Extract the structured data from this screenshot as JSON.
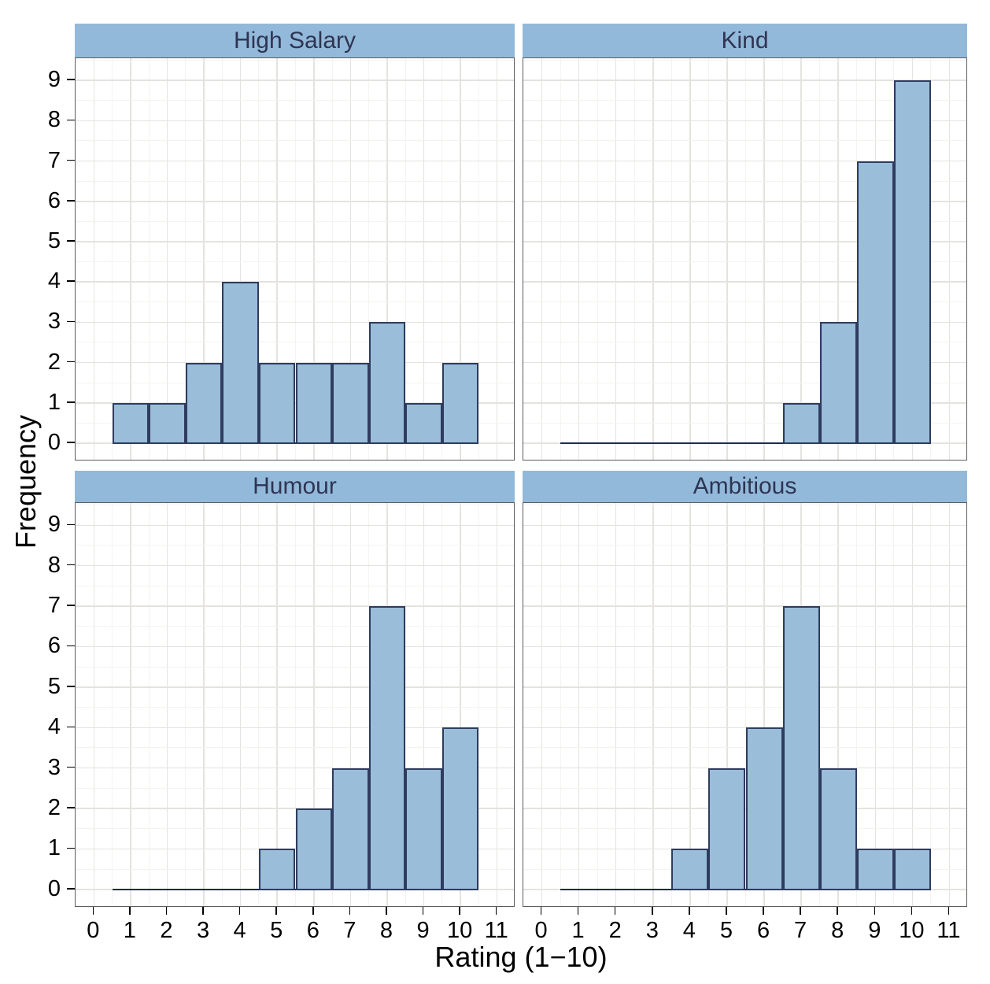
{
  "chart_data": {
    "type": "bar",
    "subtype": "faceted-histogram",
    "title": "",
    "xlabel": "Rating (1−10)",
    "ylabel": "Frequency",
    "bin_centers": [
      1,
      2,
      3,
      4,
      5,
      6,
      7,
      8,
      9,
      10
    ],
    "bin_width": 1,
    "facets": [
      {
        "label": "High Salary",
        "row": 0,
        "col": 0,
        "values": [
          1,
          1,
          2,
          4,
          2,
          2,
          2,
          3,
          1,
          2
        ]
      },
      {
        "label": "Kind",
        "row": 0,
        "col": 1,
        "values": [
          0,
          0,
          0,
          0,
          0,
          0,
          1,
          3,
          7,
          9
        ]
      },
      {
        "label": "Humour",
        "row": 1,
        "col": 0,
        "values": [
          0,
          0,
          0,
          0,
          1,
          2,
          3,
          7,
          3,
          4
        ]
      },
      {
        "label": "Ambitious",
        "row": 1,
        "col": 1,
        "values": [
          0,
          0,
          0,
          1,
          3,
          4,
          7,
          3,
          1,
          1
        ]
      }
    ],
    "x_ticks": [
      0,
      1,
      2,
      3,
      4,
      5,
      6,
      7,
      8,
      9,
      10,
      11
    ],
    "y_ticks": [
      0,
      1,
      2,
      3,
      4,
      5,
      6,
      7,
      8,
      9
    ],
    "xlim": [
      -0.5,
      11.5
    ],
    "ylim": [
      -0.45,
      9.55
    ],
    "zero_line_extent": [
      0.5,
      10.5
    ],
    "grid": {
      "major_every": 1,
      "minor_every": 0.5,
      "visible": true
    },
    "legend": "none",
    "colors": {
      "bar_fill": "#9abdda",
      "bar_border": "#2e3c5e",
      "strip_bg": "#93b9da",
      "strip_text": "#2e3553",
      "panel_border": "#5c5c5c",
      "grid_major": "#e4e3df",
      "grid_minor": "#f4f3f0",
      "axis_text": "#000000",
      "zero_line": "#1e2b4d",
      "background": "#ffffff"
    }
  }
}
